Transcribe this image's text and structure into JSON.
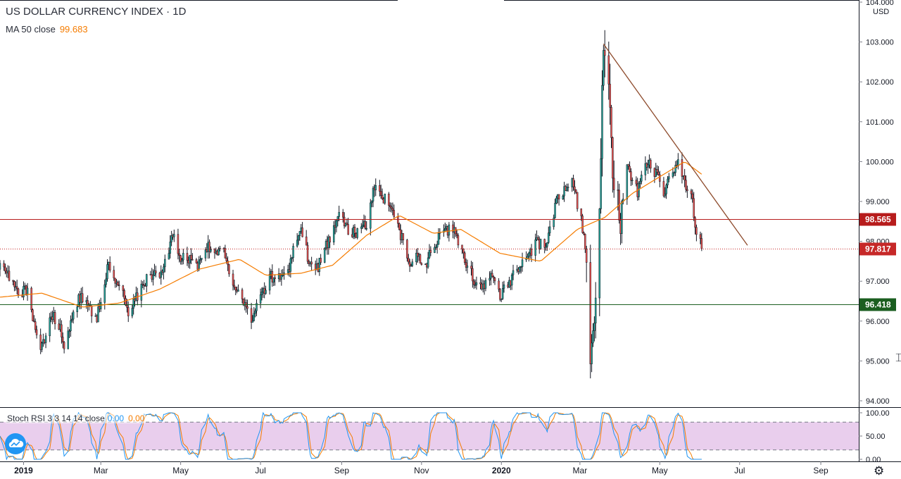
{
  "header": {
    "title": "US DOLLAR CURRENCY INDEX · 1D",
    "ma_label": "MA 50 close",
    "ma_value": "99.683"
  },
  "indicator": {
    "label": "Stoch RSI 3 3 14 14 close",
    "k_value": "0.00",
    "d_value": "0.00"
  },
  "colors": {
    "up": "#26a69a",
    "down": "#ef5350",
    "ma": "#f57c00",
    "stoch_k": "#2196f3",
    "stoch_d": "#f57c00",
    "stoch_band": "#e1bee7",
    "resistance": "#b71c1c",
    "support": "#1b5e20",
    "trendline": "#8d4a2b"
  },
  "chart_data": [
    {
      "type": "candlestick",
      "title": "US DOLLAR CURRENCY INDEX · 1D",
      "y_unit": "USD",
      "ylim": [
        93.8,
        104.1
      ],
      "y_ticks": [
        "104.000",
        "103.000",
        "102.000",
        "101.000",
        "100.000",
        "99.000",
        "98.000",
        "97.000",
        "96.000",
        "95.000",
        "94.000"
      ],
      "x_ticks": [
        {
          "label": "2019",
          "date": "2019-01-01"
        },
        {
          "label": "Mar",
          "date": "2019-03-01"
        },
        {
          "label": "May",
          "date": "2019-05-01"
        },
        {
          "label": "Jul",
          "date": "2019-07-01"
        },
        {
          "label": "Sep",
          "date": "2019-09-01"
        },
        {
          "label": "Nov",
          "date": "2019-11-01"
        },
        {
          "label": "2020",
          "date": "2020-01-01"
        },
        {
          "label": "Mar",
          "date": "2020-03-01"
        },
        {
          "label": "May",
          "date": "2020-05-01"
        },
        {
          "label": "Jul",
          "date": "2020-07-01"
        },
        {
          "label": "Sep",
          "date": "2020-09-01"
        }
      ],
      "xlim": [
        "2018-12-14",
        "2020-09-30"
      ],
      "horizontal_lines": [
        {
          "value": 98.565,
          "label": "98.565",
          "style": "solid",
          "color": "#b71c1c"
        },
        {
          "value": 97.817,
          "label": "97.817",
          "style": "dotted",
          "color": "#c62828"
        },
        {
          "value": 96.418,
          "label": "96.418",
          "style": "solid",
          "color": "#1b5e20"
        }
      ],
      "trendline": {
        "from": [
          "2020-03-19",
          102.95
        ],
        "to": [
          "2020-07-07",
          97.9
        ]
      },
      "price_path": [
        [
          "2018-12-14",
          97.3
        ],
        [
          "2018-12-20",
          97.2
        ],
        [
          "2018-12-28",
          96.6
        ],
        [
          "2019-01-04",
          96.8
        ],
        [
          "2019-01-10",
          95.8
        ],
        [
          "2019-01-15",
          95.3
        ],
        [
          "2019-01-22",
          96.2
        ],
        [
          "2019-01-28",
          95.9
        ],
        [
          "2019-02-01",
          95.4
        ],
        [
          "2019-02-08",
          96.1
        ],
        [
          "2019-02-13",
          96.6
        ],
        [
          "2019-02-20",
          96.3
        ],
        [
          "2019-02-26",
          96.1
        ],
        [
          "2019-03-01",
          96.5
        ],
        [
          "2019-03-07",
          97.5
        ],
        [
          "2019-03-12",
          97.0
        ],
        [
          "2019-03-19",
          96.6
        ],
        [
          "2019-03-22",
          96.0
        ],
        [
          "2019-03-28",
          96.6
        ],
        [
          "2019-04-03",
          97.0
        ],
        [
          "2019-04-10",
          97.2
        ],
        [
          "2019-04-16",
          97.1
        ],
        [
          "2019-04-25",
          98.1
        ],
        [
          "2019-05-01",
          97.6
        ],
        [
          "2019-05-08",
          97.5
        ],
        [
          "2019-05-14",
          97.4
        ],
        [
          "2019-05-23",
          97.9
        ],
        [
          "2019-06-03",
          97.7
        ],
        [
          "2019-06-10",
          96.9
        ],
        [
          "2019-06-18",
          96.4
        ],
        [
          "2019-06-25",
          96.0
        ],
        [
          "2019-07-01",
          96.7
        ],
        [
          "2019-07-09",
          97.1
        ],
        [
          "2019-07-16",
          97.2
        ],
        [
          "2019-07-23",
          97.4
        ],
        [
          "2019-07-31",
          98.4
        ],
        [
          "2019-08-07",
          97.5
        ],
        [
          "2019-08-13",
          97.3
        ],
        [
          "2019-08-22",
          98.0
        ],
        [
          "2019-08-30",
          98.8
        ],
        [
          "2019-09-06",
          98.3
        ],
        [
          "2019-09-13",
          98.2
        ],
        [
          "2019-09-20",
          98.4
        ],
        [
          "2019-09-25",
          99.3
        ],
        [
          "2019-10-01",
          99.2
        ],
        [
          "2019-10-08",
          98.8
        ],
        [
          "2019-10-15",
          98.3
        ],
        [
          "2019-10-22",
          97.4
        ],
        [
          "2019-10-30",
          97.6
        ],
        [
          "2019-11-05",
          97.5
        ],
        [
          "2019-11-12",
          98.0
        ],
        [
          "2019-11-19",
          98.3
        ],
        [
          "2019-11-26",
          98.3
        ],
        [
          "2019-12-03",
          97.6
        ],
        [
          "2019-12-10",
          97.1
        ],
        [
          "2019-12-17",
          96.8
        ],
        [
          "2019-12-24",
          97.3
        ],
        [
          "2019-12-31",
          96.6
        ],
        [
          "2020-01-07",
          97.0
        ],
        [
          "2020-01-14",
          97.3
        ],
        [
          "2020-01-21",
          97.6
        ],
        [
          "2020-01-28",
          98.0
        ],
        [
          "2020-02-04",
          97.8
        ],
        [
          "2020-02-11",
          98.9
        ],
        [
          "2020-02-19",
          99.4
        ],
        [
          "2020-02-24",
          99.6
        ],
        [
          "2020-03-02",
          98.5
        ],
        [
          "2020-03-06",
          97.6
        ],
        [
          "2020-03-09",
          95.1
        ],
        [
          "2020-03-12",
          96.2
        ],
        [
          "2020-03-16",
          98.8
        ],
        [
          "2020-03-19",
          102.8
        ],
        [
          "2020-03-23",
          101.9
        ],
        [
          "2020-03-27",
          99.2
        ],
        [
          "2020-04-01",
          98.6
        ],
        [
          "2020-04-06",
          99.9
        ],
        [
          "2020-04-14",
          99.2
        ],
        [
          "2020-04-21",
          100.0
        ],
        [
          "2020-04-28",
          99.7
        ],
        [
          "2020-05-04",
          99.2
        ],
        [
          "2020-05-11",
          99.8
        ],
        [
          "2020-05-15",
          99.9
        ],
        [
          "2020-05-21",
          99.4
        ],
        [
          "2020-05-26",
          99.0
        ],
        [
          "2020-05-29",
          98.2
        ],
        [
          "2020-06-02",
          97.817
        ]
      ],
      "ma_path": [
        [
          "2018-12-14",
          96.6
        ],
        [
          "2019-01-15",
          96.7
        ],
        [
          "2019-02-15",
          96.35
        ],
        [
          "2019-03-15",
          96.45
        ],
        [
          "2019-04-15",
          96.8
        ],
        [
          "2019-05-15",
          97.3
        ],
        [
          "2019-06-15",
          97.55
        ],
        [
          "2019-07-05",
          97.15
        ],
        [
          "2019-08-01",
          97.2
        ],
        [
          "2019-08-25",
          97.4
        ],
        [
          "2019-09-20",
          98.15
        ],
        [
          "2019-10-15",
          98.65
        ],
        [
          "2019-11-10",
          98.2
        ],
        [
          "2019-12-01",
          98.3
        ],
        [
          "2019-12-31",
          97.7
        ],
        [
          "2020-01-31",
          97.5
        ],
        [
          "2020-02-28",
          98.3
        ],
        [
          "2020-03-20",
          98.6
        ],
        [
          "2020-04-10",
          99.2
        ],
        [
          "2020-04-30",
          99.6
        ],
        [
          "2020-05-20",
          100.0
        ],
        [
          "2020-06-02",
          99.683
        ]
      ],
      "last_price": 97.817,
      "last_date": "2020-06-02"
    },
    {
      "type": "line",
      "title": "Stoch RSI 3 3 14 14 close",
      "ylim": [
        0,
        100
      ],
      "y_ticks": [
        "100.00",
        "50.00",
        "0.00"
      ],
      "band": [
        20,
        80
      ],
      "k_last": 0.0,
      "d_last": 0.0
    }
  ]
}
